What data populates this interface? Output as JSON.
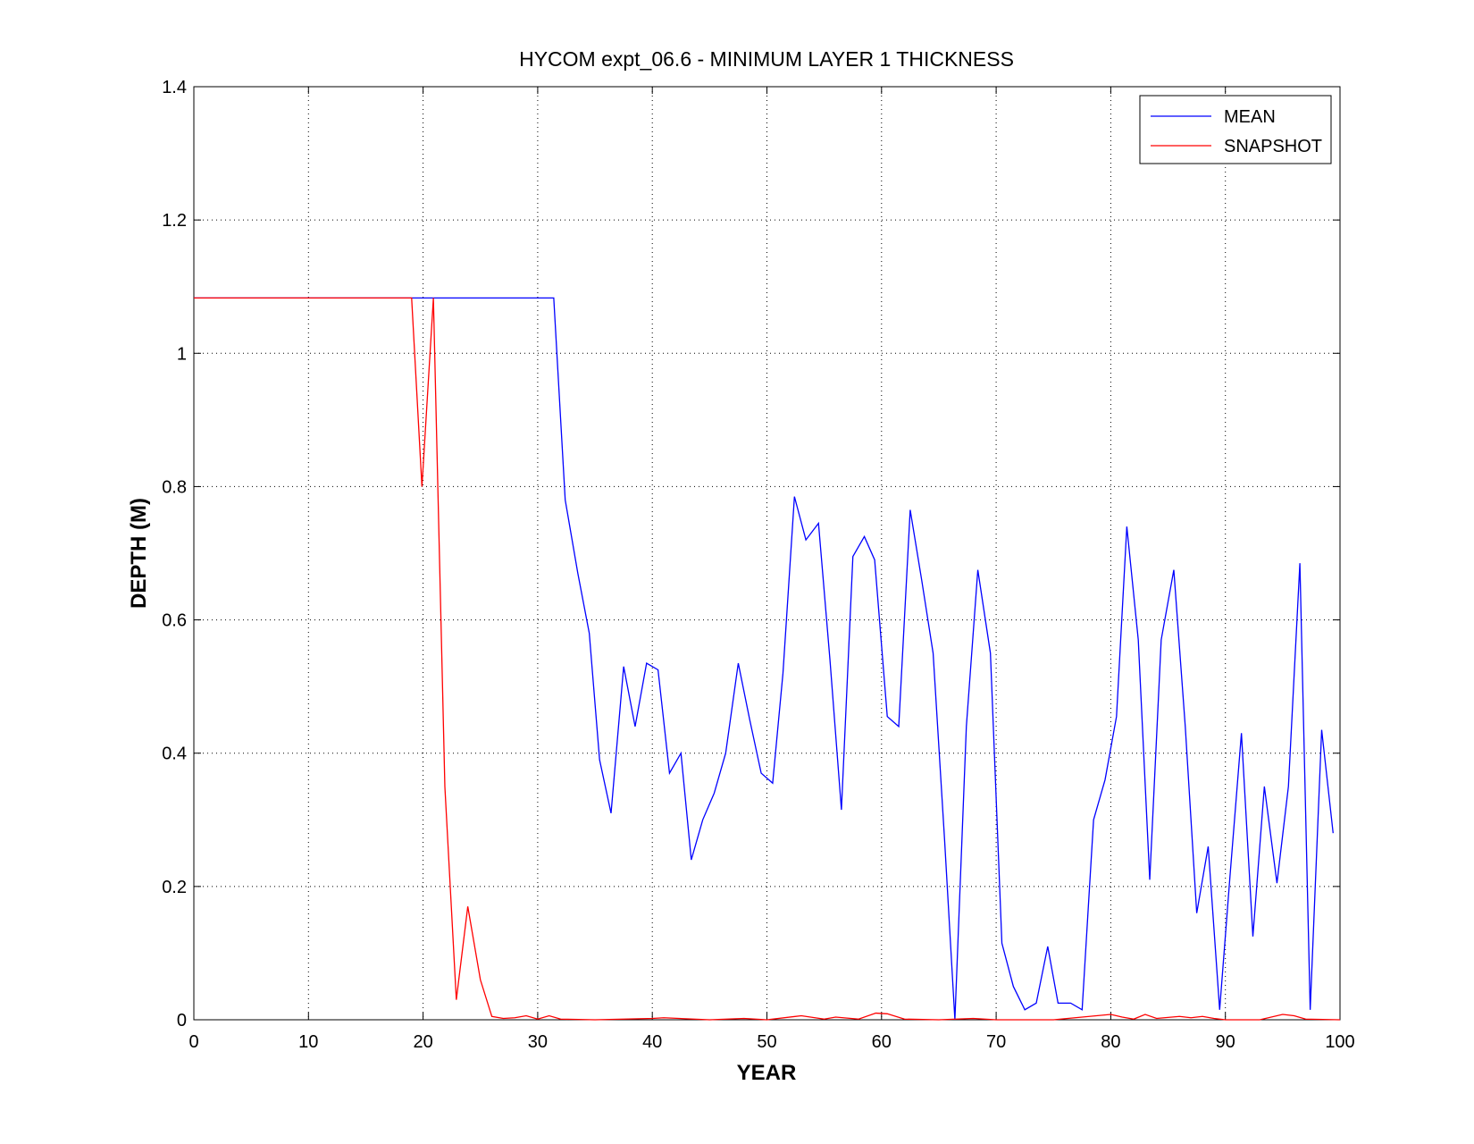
{
  "chart_data": {
    "type": "line",
    "title": "HYCOM expt_06.6 - MINIMUM LAYER 1 THICKNESS",
    "xlabel": "YEAR",
    "ylabel": "DEPTH (M)",
    "xlim": [
      0,
      100
    ],
    "xticks": [
      0,
      10,
      20,
      30,
      40,
      50,
      60,
      70,
      80,
      90,
      100
    ],
    "ylim": [
      0,
      1.4
    ],
    "yticks": [
      0,
      0.2,
      0.4,
      0.6,
      0.8,
      1,
      1.2,
      1.4
    ],
    "grid": true,
    "legend": "upper right",
    "series": [
      {
        "name": "MEAN",
        "color": "#0000ff",
        "x": [
          0,
          31.4,
          32.4,
          33.5,
          34.5,
          35.4,
          36.4,
          37.5,
          38.5,
          39.5,
          40.5,
          41.5,
          42.5,
          43.4,
          44.4,
          45.4,
          46.4,
          47.5,
          48.5,
          49.5,
          50.5,
          51.4,
          52.4,
          53.4,
          54.5,
          55.5,
          56.5,
          57.5,
          58.5,
          59.4,
          60.5,
          61.5,
          62.5,
          63.5,
          64.5,
          65.5,
          66.4,
          67.4,
          68.4,
          69.5,
          70.5,
          71.5,
          72.5,
          73.5,
          74.5,
          75.4,
          76.5,
          77.5,
          78.5,
          79.5,
          80.5,
          81.4,
          82.4,
          83.4,
          84.4,
          85.5,
          86.5,
          87.5,
          88.5,
          89.5,
          90.4,
          91.4,
          92.4,
          93.4,
          94.5,
          95.5,
          96.5,
          97.4,
          98.4,
          99.4
        ],
        "values": [
          1.083,
          1.083,
          0.78,
          0.67,
          0.58,
          0.39,
          0.31,
          0.53,
          0.44,
          0.535,
          0.525,
          0.37,
          0.4,
          0.24,
          0.3,
          0.34,
          0.4,
          0.535,
          0.45,
          0.37,
          0.355,
          0.52,
          0.785,
          0.72,
          0.745,
          0.54,
          0.315,
          0.695,
          0.725,
          0.69,
          0.455,
          0.44,
          0.765,
          0.66,
          0.55,
          0.27,
          0,
          0.44,
          0.675,
          0.55,
          0.115,
          0.05,
          0.015,
          0.025,
          0.11,
          0.025,
          0.025,
          0.015,
          0.3,
          0.36,
          0.455,
          0.74,
          0.57,
          0.21,
          0.57,
          0.675,
          0.44,
          0.16,
          0.26,
          0.015,
          0.215,
          0.43,
          0.125,
          0.35,
          0.205,
          0.35,
          0.685,
          0.015,
          0.435,
          0.28
        ]
      },
      {
        "name": "SNAPSHOT",
        "color": "#ff0000",
        "x": [
          0,
          19,
          19.9,
          20.9,
          21.9,
          22.9,
          23.9,
          25,
          26,
          27,
          28,
          29,
          30,
          31,
          32,
          35,
          40,
          41,
          45,
          48,
          50,
          53,
          55,
          56,
          58,
          59.5,
          60.5,
          62,
          65,
          68,
          70,
          75,
          80,
          81,
          82,
          83,
          84,
          86,
          87,
          88,
          89,
          90,
          93,
          95,
          96,
          97,
          100
        ],
        "values": [
          1.083,
          1.083,
          0.8,
          1.083,
          0.35,
          0.03,
          0.17,
          0.06,
          0.005,
          0.002,
          0.003,
          0.006,
          0.001,
          0.006,
          0.001,
          0,
          0.002,
          0.003,
          0,
          0.002,
          0,
          0.006,
          0.001,
          0.004,
          0.001,
          0.01,
          0.009,
          0.001,
          0,
          0.002,
          0,
          0,
          0.008,
          0.004,
          0.001,
          0.008,
          0.002,
          0.005,
          0.003,
          0.005,
          0.002,
          0,
          0,
          0.008,
          0.006,
          0.001,
          0
        ]
      }
    ]
  }
}
